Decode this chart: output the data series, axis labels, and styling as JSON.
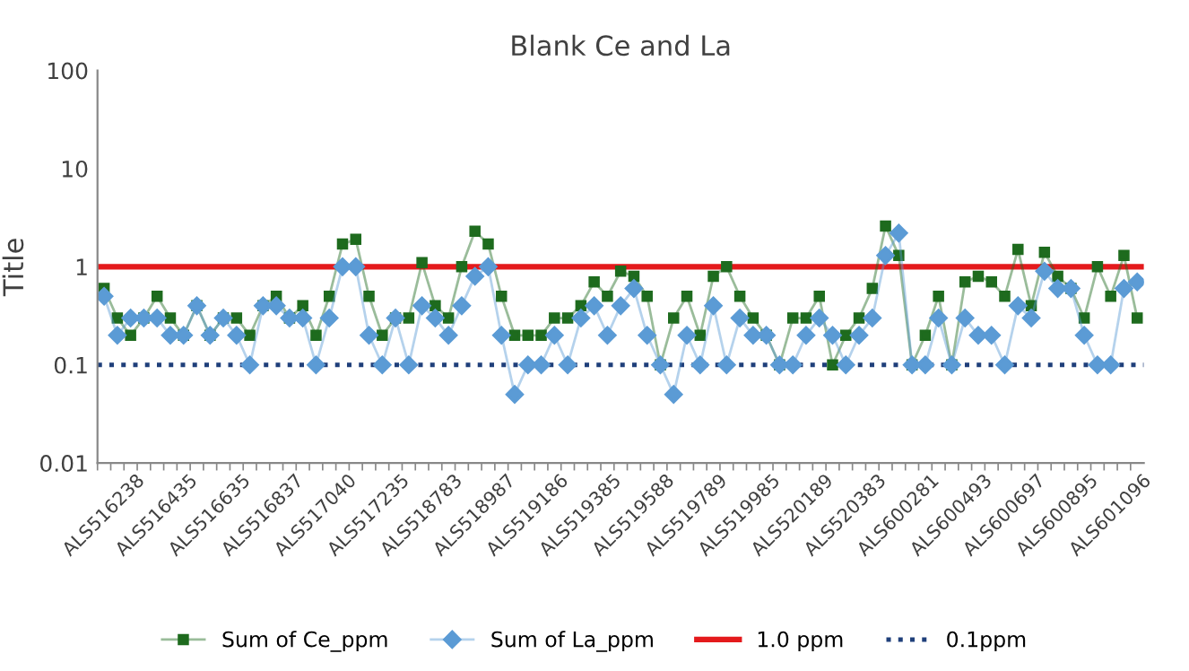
{
  "chart_data": {
    "type": "line",
    "title": "Blank Ce and La",
    "ylabel": "Title",
    "categories": [
      "ALS516238",
      null,
      null,
      null,
      "ALS516435",
      null,
      null,
      null,
      "ALS516635",
      null,
      null,
      null,
      "ALS516837",
      null,
      null,
      null,
      "ALS517040",
      null,
      null,
      null,
      "ALS517235",
      null,
      null,
      null,
      "ALS518783",
      null,
      null,
      null,
      "ALS518987",
      null,
      null,
      null,
      "ALS519186",
      null,
      null,
      null,
      "ALS519385",
      null,
      null,
      null,
      "ALS519588",
      null,
      null,
      null,
      "ALS519789",
      null,
      null,
      null,
      "ALS519985",
      null,
      null,
      null,
      "ALS520189",
      null,
      null,
      null,
      "ALS520383",
      null,
      null,
      null,
      "ALS600281",
      null,
      null,
      null,
      "ALS600493",
      null,
      null,
      null,
      "ALS600697",
      null,
      null,
      null,
      "ALS600895",
      null,
      null,
      null,
      "ALS601096",
      null,
      null
    ],
    "series": [
      {
        "name": "Sum of Ce_ppm",
        "color": "#1e6b1e",
        "marker": "square",
        "values": [
          0.6,
          0.3,
          0.2,
          0.3,
          0.5,
          0.3,
          0.2,
          0.4,
          0.2,
          0.3,
          0.3,
          0.2,
          0.4,
          0.5,
          0.3,
          0.4,
          0.2,
          0.5,
          1.7,
          1.9,
          0.5,
          0.2,
          0.3,
          0.3,
          1.1,
          0.4,
          0.3,
          1.0,
          2.3,
          1.7,
          0.5,
          0.2,
          0.2,
          0.2,
          0.3,
          0.3,
          0.4,
          0.7,
          0.5,
          0.9,
          0.8,
          0.5,
          0.1,
          0.3,
          0.5,
          0.2,
          0.8,
          1.0,
          0.5,
          0.3,
          0.2,
          0.1,
          0.3,
          0.3,
          0.5,
          0.1,
          0.2,
          0.3,
          0.6,
          2.6,
          1.3,
          0.1,
          0.2,
          0.5,
          0.1,
          0.7,
          0.8,
          0.7,
          0.5,
          1.5,
          0.4,
          1.4,
          0.8,
          0.6,
          0.3,
          1.0,
          0.5,
          1.3,
          0.3
        ]
      },
      {
        "name": "Sum of La_ppm",
        "color": "#5b9bd5",
        "marker": "diamond",
        "values": [
          0.5,
          0.2,
          0.3,
          0.3,
          0.3,
          0.2,
          0.2,
          0.4,
          0.2,
          0.3,
          0.2,
          0.1,
          0.4,
          0.4,
          0.3,
          0.3,
          0.1,
          0.3,
          1.0,
          1.0,
          0.2,
          0.1,
          0.3,
          0.1,
          0.4,
          0.3,
          0.2,
          0.4,
          0.8,
          1.0,
          0.2,
          0.05,
          0.1,
          0.1,
          0.2,
          0.1,
          0.3,
          0.4,
          0.2,
          0.4,
          0.6,
          0.2,
          0.1,
          0.05,
          0.2,
          0.1,
          0.4,
          0.1,
          0.3,
          0.2,
          0.2,
          0.1,
          0.1,
          0.2,
          0.3,
          0.2,
          0.1,
          0.2,
          0.3,
          1.3,
          2.2,
          0.1,
          0.1,
          0.3,
          0.1,
          0.3,
          0.2,
          0.2,
          0.1,
          0.4,
          0.3,
          0.9,
          0.6,
          0.6,
          0.2,
          0.1,
          0.1,
          0.6,
          0.7
        ]
      }
    ],
    "ref_lines": [
      {
        "axis": "y",
        "value": 1.0,
        "label": "1.0 ppm",
        "color": "#e41a1c",
        "line_style": "solid"
      },
      {
        "axis": "y",
        "value": 0.1,
        "label": "0.1ppm",
        "color": "#1f3f7a",
        "line_style": "dotted"
      }
    ],
    "log": "y",
    "ylim": [
      0.01,
      100
    ],
    "yticks": [
      {
        "value": 0.01,
        "label": "0.01"
      },
      {
        "value": 0.1,
        "label": "0.1"
      },
      1,
      10,
      100
    ],
    "grid": false,
    "legend": "bottom"
  }
}
